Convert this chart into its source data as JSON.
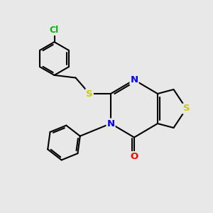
{
  "background_color": "#e8e8e8",
  "atom_colors": {
    "C": "#000000",
    "N": "#0000ee",
    "O": "#ff0000",
    "S": "#cccc00",
    "Cl": "#00bb00"
  },
  "bond_color": "#000000",
  "bond_width": 1.5,
  "figsize": [
    3.0,
    3.0
  ],
  "dpi": 100
}
